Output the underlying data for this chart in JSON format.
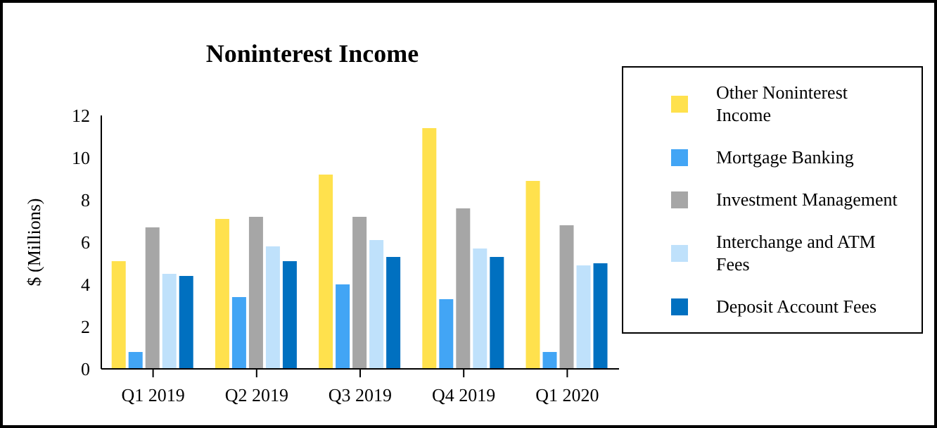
{
  "chart_data": {
    "type": "bar",
    "title": "Noninterest Income",
    "ylabel": "$ (Millions)",
    "categories": [
      "Q1 2019",
      "Q2 2019",
      "Q3 2019",
      "Q4 2019",
      "Q1 2020"
    ],
    "series": [
      {
        "name": "Other Noninterest Income",
        "color": "#ffe14d",
        "values": [
          5.1,
          7.1,
          9.2,
          11.4,
          8.9
        ]
      },
      {
        "name": "Mortgage Banking",
        "color": "#42a5f5",
        "values": [
          0.8,
          3.4,
          4.0,
          3.3,
          0.8
        ]
      },
      {
        "name": "Investment Management",
        "color": "#a6a6a6",
        "values": [
          6.7,
          7.2,
          7.2,
          7.6,
          6.8
        ]
      },
      {
        "name": "Interchange and ATM Fees",
        "color": "#bfe1fb",
        "values": [
          4.5,
          5.8,
          6.1,
          5.7,
          4.9
        ]
      },
      {
        "name": "Deposit Account Fees",
        "color": "#0070c0",
        "values": [
          4.4,
          5.1,
          5.3,
          5.3,
          5.0
        ]
      }
    ],
    "ylim": [
      0,
      12
    ],
    "yticks": [
      0,
      2,
      4,
      6,
      8,
      10,
      12
    ],
    "legend": "right",
    "grid": false
  }
}
